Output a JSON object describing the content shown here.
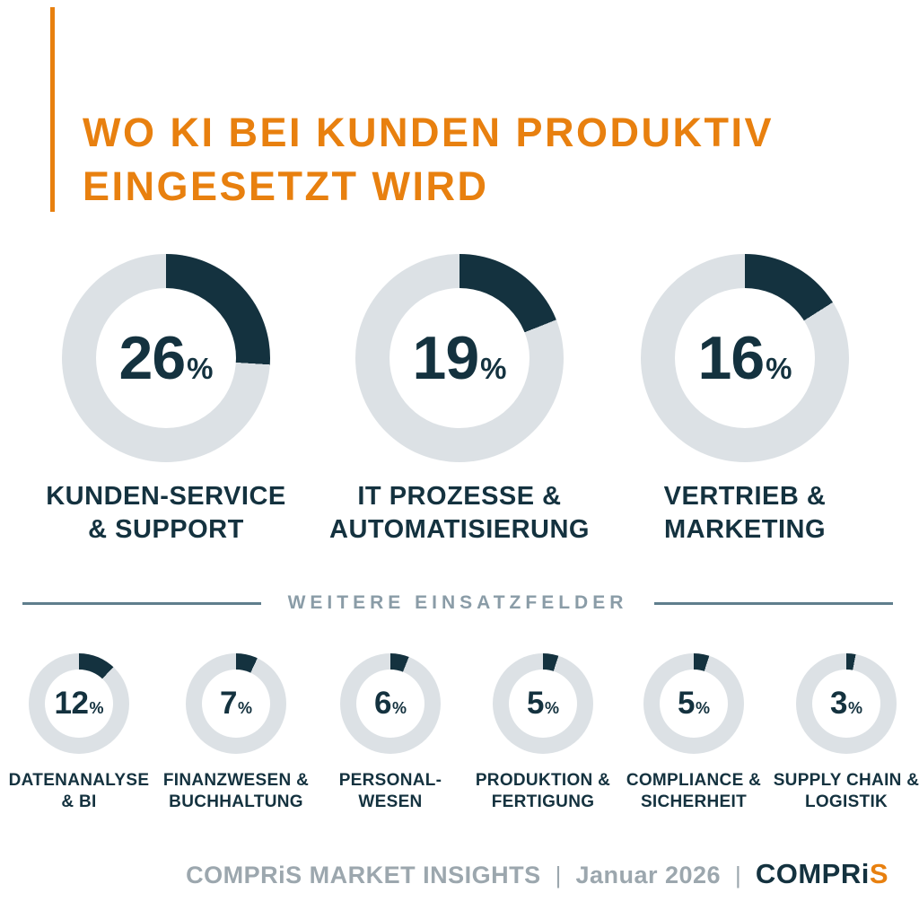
{
  "colors": {
    "accent_orange": "#E8800F",
    "navy": "#14323F",
    "ring_track": "#DCE1E5",
    "divider_line": "#5F7E8D",
    "divider_text": "#8A9CA7",
    "footer_gray": "#9CA7AE"
  },
  "header": {
    "title_line1": "WO KI BEI KUNDEN PRODUKTIV",
    "title_line2": "EINGESETZT WIRD"
  },
  "chart_data": {
    "type": "pie",
    "variant": "donut_grid",
    "title": "WO KI BEI KUNDEN PRODUKTIV EINGESETZT WIRD",
    "unit": "%",
    "legend_position": "below-each-donut",
    "main": [
      {
        "label": "KUNDEN-SERVICE & SUPPORT",
        "label_line1": "KUNDEN-SERVICE",
        "label_line2": "& SUPPORT",
        "value": 26
      },
      {
        "label": "IT PROZESSE & AUTOMATISIERUNG",
        "label_line1": "IT PROZESSE &",
        "label_line2": "AUTOMATISIERUNG",
        "value": 19
      },
      {
        "label": "VERTRIEB & MARKETING",
        "label_line1": "VERTRIEB &",
        "label_line2": "MARKETING",
        "value": 16
      }
    ],
    "secondary_heading": "WEITERE EINSATZFELDER",
    "secondary": [
      {
        "label": "DATENANALYSE & BI",
        "label_line1": "DATENANALYSE",
        "label_line2": "& BI",
        "value": 12
      },
      {
        "label": "FINANZWESEN & BUCHHALTUNG",
        "label_line1": "FINANZWESEN &",
        "label_line2": "BUCHHALTUNG",
        "value": 7
      },
      {
        "label": "PERSONAL-WESEN",
        "label_line1": "PERSONAL-",
        "label_line2": "WESEN",
        "value": 6
      },
      {
        "label": "PRODUKTION & FERTIGUNG",
        "label_line1": "PRODUKTION &",
        "label_line2": "FERTIGUNG",
        "value": 5
      },
      {
        "label": "COMPLIANCE & SICHERHEIT",
        "label_line1": "COMPLIANCE &",
        "label_line2": "SICHERHEIT",
        "value": 5
      },
      {
        "label": "SUPPLY CHAIN & LOGISTIK",
        "label_line1": "SUPPLY CHAIN &",
        "label_line2": "LOGISTIK",
        "value": 3
      }
    ]
  },
  "footer": {
    "source": "COMPRiS MARKET INSIGHTS",
    "separator": "|",
    "date": "Januar 2026",
    "logo_part1": "COMPRi",
    "logo_part2": "S"
  }
}
